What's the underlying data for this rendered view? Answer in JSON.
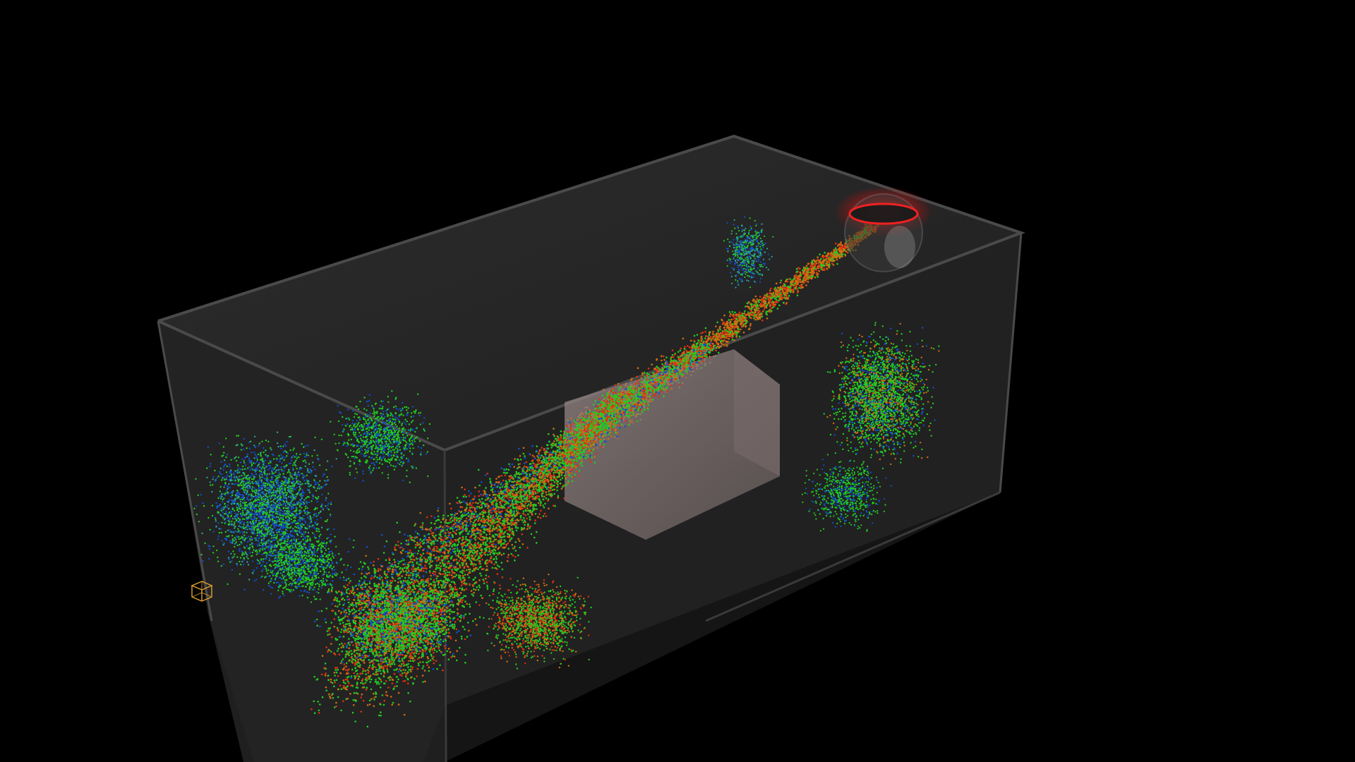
{
  "scene": {
    "background_color": "#000000",
    "container": {
      "face_color": "#2a2a2a",
      "edge_color": "#4a4a4a",
      "back_face_color": "#262626"
    },
    "obstacle": {
      "shape": "cube",
      "color": "#8a7a7a"
    },
    "emitter": {
      "shape": "sphere",
      "glow_color": "#ff2020"
    },
    "particle_colors": [
      "#22cc22",
      "#e03010",
      "#1050d0",
      "#d07010",
      "#30a0a0"
    ],
    "particle_legend": {
      "green": "#22cc22",
      "red": "#e03010",
      "blue": "#1050d0",
      "orange": "#d07010"
    }
  },
  "gizmo": {
    "icon": "cube-wireframe-icon",
    "color": "#e0a030"
  }
}
